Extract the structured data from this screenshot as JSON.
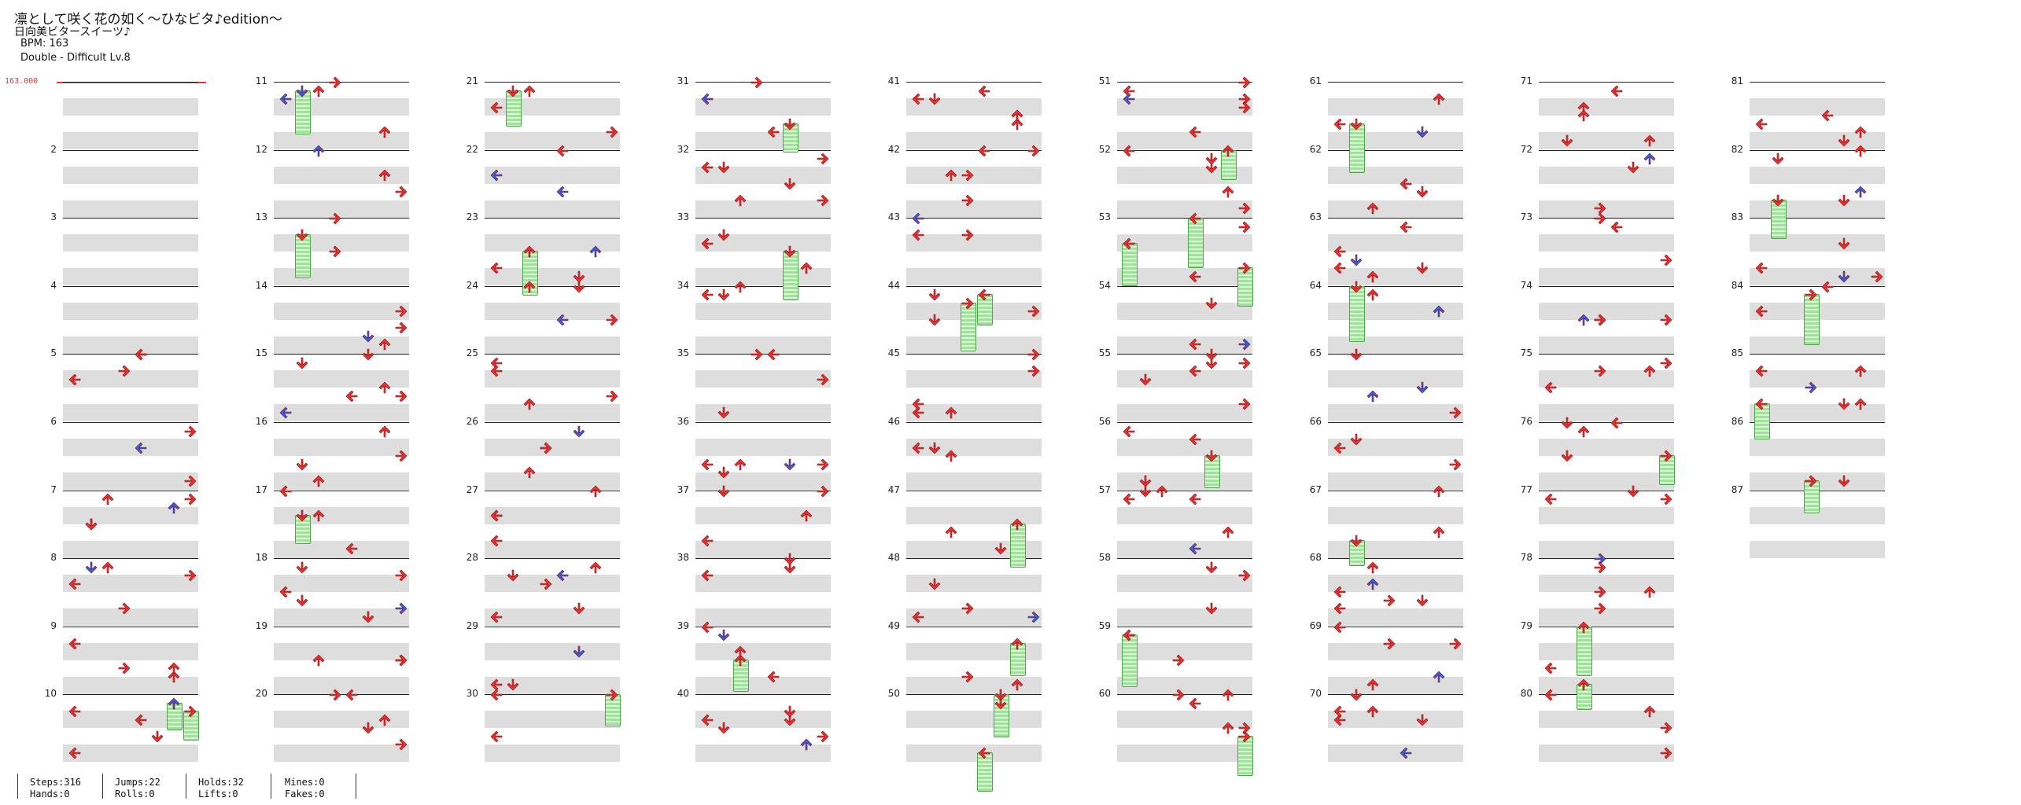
{
  "header": {
    "title": "凛として咲く花の如く～ひなビタ♪edition～",
    "artist": "日向美ビタースイーツ♪",
    "bpm": "BPM: 163",
    "difficulty": "Double - Difficult  Lv.8"
  },
  "bpm_marker": "163.000",
  "measures": [
    "2",
    "3",
    "4",
    "5",
    "6",
    "7",
    "8",
    "9",
    "10",
    "11",
    "12",
    "13",
    "14",
    "15",
    "16",
    "17",
    "18",
    "19",
    "20",
    "21",
    "22",
    "23",
    "24",
    "25",
    "26",
    "27",
    "28",
    "29",
    "30",
    "31",
    "32",
    "33",
    "34",
    "35",
    "36",
    "37",
    "38",
    "39",
    "40",
    "41",
    "42",
    "43",
    "44",
    "45",
    "46",
    "47",
    "48",
    "49",
    "50",
    "51",
    "52",
    "53",
    "54",
    "55",
    "56",
    "57",
    "58",
    "59",
    "60",
    "61",
    "62",
    "63",
    "64",
    "65",
    "66",
    "67",
    "68",
    "69",
    "70",
    "71",
    "72",
    "73",
    "74",
    "75",
    "76",
    "77",
    "78",
    "79",
    "80",
    "81",
    "82",
    "83",
    "84",
    "85",
    "86",
    "87"
  ],
  "colors": {
    "note": "#e83030",
    "note_alt": "#2f5fe8",
    "hold": "#9fe29a",
    "bpm_line": "#e53333"
  },
  "stats": {
    "steps": "Steps:316",
    "hands": "Hands:0",
    "jumps": "Jumps:22",
    "rolls": "Rolls:0",
    "holds": "Holds:32",
    "lifts": "Lifts:0",
    "mines": "Mines:0",
    "fakes": "Fakes:0"
  }
}
